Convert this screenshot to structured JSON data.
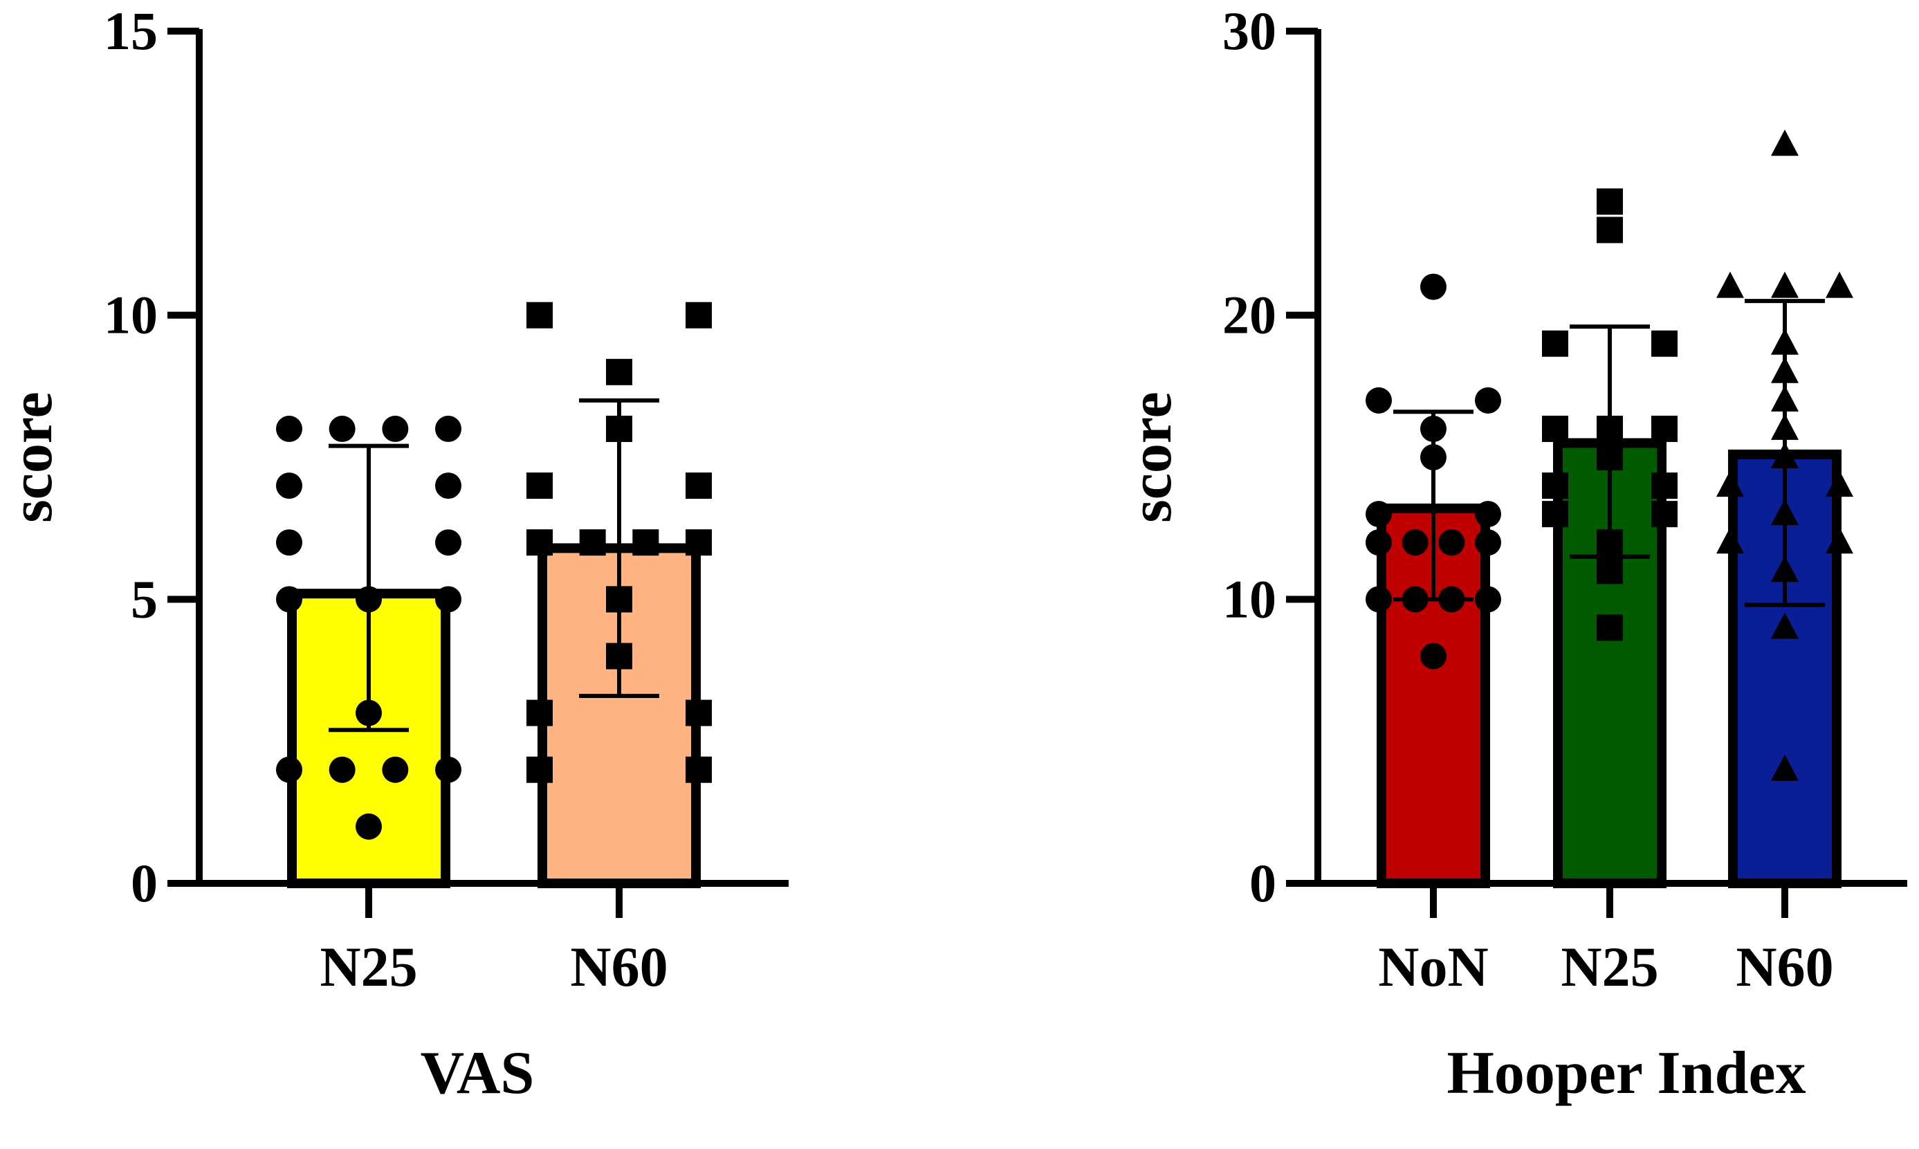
{
  "chart_data": [
    {
      "type": "bar",
      "title": "VAS",
      "ylabel": "score",
      "ylim": [
        0,
        15
      ],
      "yticks": [
        "0",
        "5",
        "10",
        "15"
      ],
      "categories": [
        "N25",
        "N60"
      ],
      "values": [
        5.1,
        5.9
      ],
      "error_low": [
        2.7,
        3.3
      ],
      "error_high": [
        7.7,
        8.5
      ],
      "colors": [
        "#ffff00",
        "#ffb482"
      ],
      "markers": [
        "circle",
        "square"
      ],
      "points": [
        [
          8,
          8,
          8,
          8,
          7,
          7,
          6,
          6,
          5,
          5,
          5,
          3,
          2,
          2,
          2,
          2,
          1
        ],
        [
          10,
          10,
          9,
          8,
          7,
          7,
          6,
          6,
          6,
          6,
          5,
          4,
          3,
          3,
          2,
          2
        ]
      ],
      "grid": false,
      "legend": "none"
    },
    {
      "type": "bar",
      "title": "Hooper Index",
      "ylabel": "score",
      "ylim": [
        0,
        30
      ],
      "yticks": [
        "0",
        "10",
        "20",
        "30"
      ],
      "categories": [
        "NoN",
        "N25",
        "N60"
      ],
      "values": [
        13.2,
        15.5,
        15.1
      ],
      "error_low": [
        10.0,
        11.5,
        9.8
      ],
      "error_high": [
        16.6,
        19.6,
        20.5
      ],
      "colors": [
        "#c00000",
        "#005a00",
        "#0a1e96"
      ],
      "markers": [
        "circle",
        "square",
        "triangle"
      ],
      "points": [
        [
          21,
          17,
          17,
          16,
          15,
          13,
          13,
          12,
          12,
          12,
          12,
          10,
          10,
          10,
          10,
          8
        ],
        [
          24,
          23,
          19,
          19,
          16,
          16,
          16,
          15,
          14,
          14,
          13,
          13,
          12,
          11,
          9
        ],
        [
          26,
          21,
          21,
          21,
          19,
          18,
          17,
          16,
          15,
          14,
          14,
          13,
          12,
          12,
          11,
          9,
          4
        ]
      ],
      "grid": false,
      "legend": "none"
    }
  ]
}
